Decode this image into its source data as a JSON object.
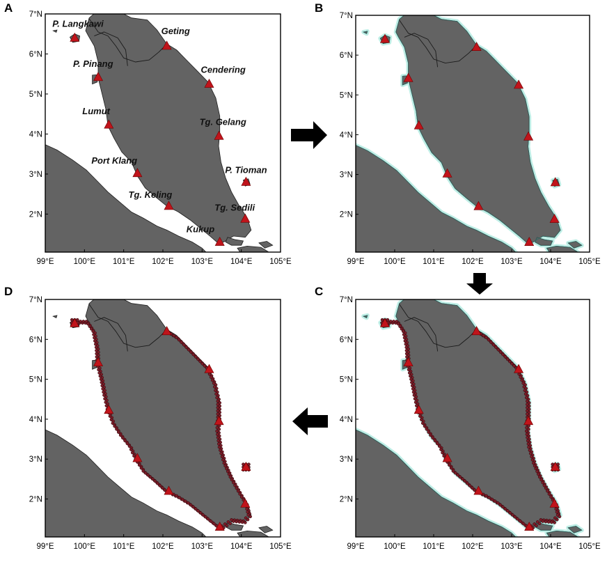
{
  "panels": [
    {
      "id": "A",
      "letter": "A",
      "show_labels": true,
      "buffer": false,
      "grid": false
    },
    {
      "id": "B",
      "letter": "B",
      "show_labels": false,
      "buffer": true,
      "grid": false
    },
    {
      "id": "C",
      "letter": "C",
      "show_labels": false,
      "buffer": true,
      "grid": true
    },
    {
      "id": "D",
      "letter": "D",
      "show_labels": false,
      "buffer": false,
      "grid": true
    }
  ],
  "axes": {
    "lon_ticks": [
      99,
      100,
      101,
      102,
      103,
      104,
      105
    ],
    "lon_tick_labels": [
      "99°E",
      "100°E",
      "101°E",
      "102°E",
      "103°E",
      "104°E",
      "105°E"
    ],
    "lat_ticks": [
      2,
      3,
      4,
      5,
      6,
      7
    ],
    "lat_tick_labels": [
      "2°N",
      "3°N",
      "4°N",
      "5°N",
      "6°N",
      "7°N"
    ],
    "lon_range": [
      99,
      105
    ],
    "lat_range": [
      1.05,
      7
    ]
  },
  "stations": [
    {
      "name": "P. Langkawi",
      "lon": 99.75,
      "lat": 6.4
    },
    {
      "name": "Geting",
      "lon": 102.1,
      "lat": 6.2
    },
    {
      "name": "P. Pinang",
      "lon": 100.35,
      "lat": 5.42
    },
    {
      "name": "Cendering",
      "lon": 103.18,
      "lat": 5.25
    },
    {
      "name": "Lumut",
      "lon": 100.62,
      "lat": 4.23
    },
    {
      "name": "Tg. Gelang",
      "lon": 103.43,
      "lat": 3.95
    },
    {
      "name": "Port Klang",
      "lon": 101.35,
      "lat": 3.02
    },
    {
      "name": "P. Tioman",
      "lon": 104.12,
      "lat": 2.8
    },
    {
      "name": "Tg. Keling",
      "lon": 102.15,
      "lat": 2.2
    },
    {
      "name": "Tg. Sedili",
      "lon": 104.1,
      "lat": 1.88
    },
    {
      "name": "Kukup",
      "lon": 103.45,
      "lat": 1.3
    }
  ],
  "colors": {
    "land": "#636363",
    "sea": "#ffffff",
    "buffer": "#bfeee6",
    "station": "#c0141b",
    "grid_point": "#7a1d28"
  },
  "icons": {
    "flow_arrow": "right-arrow-icon"
  }
}
